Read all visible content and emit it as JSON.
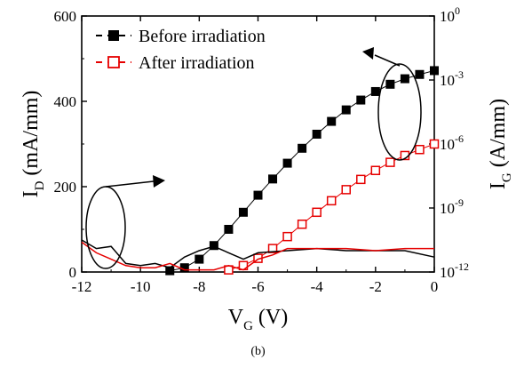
{
  "chart_data": {
    "type": "scatter",
    "caption": "(b)",
    "x_axis": {
      "label_main": "V",
      "label_sub": "G",
      "label_unit": "(V)",
      "range": [
        -12,
        0
      ],
      "ticks": [
        -12,
        -10,
        -8,
        -6,
        -4,
        -2,
        0
      ],
      "tick_labels": [
        "-12",
        "-10",
        "-8",
        "-6",
        "-4",
        "-2",
        "0"
      ]
    },
    "y_left": {
      "label_main": "I",
      "label_sub": "D",
      "label_unit": "(mA/mm)",
      "range": [
        0,
        600
      ],
      "ticks": [
        0,
        200,
        400,
        600
      ],
      "tick_labels": [
        "0",
        "200",
        "400",
        "600"
      ]
    },
    "y_right": {
      "label_main": "I",
      "label_sub": "G",
      "label_unit": "(A/mm)",
      "scale": "log",
      "range_exponent": [
        -12,
        0
      ],
      "ticks_exponent": [
        -12,
        -9,
        -6,
        -3,
        0
      ],
      "tick_labels": [
        {
          "base": "10",
          "exp": "-12"
        },
        {
          "base": "10",
          "exp": "-9"
        },
        {
          "base": "10",
          "exp": "-6"
        },
        {
          "base": "10",
          "exp": "-3"
        },
        {
          "base": "10",
          "exp": "0"
        }
      ]
    },
    "legend": {
      "position": "top-left",
      "entries": [
        {
          "label": "Before irradiation",
          "color": "#000000",
          "marker": "filled-square",
          "line": "dashed"
        },
        {
          "label": "After irradiation",
          "color": "#e60000",
          "marker": "open-square",
          "line": "dashed"
        }
      ]
    },
    "series": [
      {
        "name": "Before irradiation",
        "axis": "left",
        "color": "#000000",
        "marker": "filled-square",
        "x": [
          -9.0,
          -8.5,
          -8.0,
          -7.5,
          -7.0,
          -6.5,
          -6.0,
          -5.5,
          -5.0,
          -4.5,
          -4.0,
          -3.5,
          -3.0,
          -2.5,
          -2.0,
          -1.5,
          -1.0,
          -0.5,
          0.0
        ],
        "y": [
          3,
          10,
          30,
          62,
          100,
          140,
          180,
          218,
          255,
          290,
          323,
          353,
          380,
          403,
          423,
          440,
          453,
          463,
          472
        ]
      },
      {
        "name": "After irradiation",
        "axis": "left",
        "color": "#e60000",
        "marker": "open-square",
        "x": [
          -7.0,
          -6.5,
          -6.0,
          -5.5,
          -5.0,
          -4.5,
          -4.0,
          -3.5,
          -3.0,
          -2.5,
          -2.0,
          -1.5,
          -1.0,
          -0.5,
          0.0
        ],
        "y": [
          5,
          15,
          32,
          55,
          83,
          112,
          140,
          167,
          193,
          217,
          238,
          257,
          273,
          287,
          300
        ]
      },
      {
        "name": "Before irradiation",
        "axis": "right",
        "color": "#000000",
        "line": "solid",
        "x": [
          -12.0,
          -11.5,
          -11.0,
          -10.5,
          -10.0,
          -9.5,
          -9.0,
          -8.5,
          -8.0,
          -7.5,
          -7.0,
          -6.5,
          -6.0,
          -5.0,
          -4.0,
          -3.0,
          -2.0,
          -1.0,
          0.0
        ],
        "y_exponent": [
          -10.5,
          -10.9,
          -10.8,
          -11.6,
          -11.7,
          -11.6,
          -11.8,
          -11.3,
          -11.0,
          -10.8,
          -11.1,
          -11.4,
          -11.1,
          -11.0,
          -10.9,
          -11.0,
          -11.0,
          -11.0,
          -11.3
        ]
      },
      {
        "name": "After irradiation",
        "axis": "right",
        "color": "#e60000",
        "line": "solid",
        "x": [
          -12.0,
          -11.5,
          -11.0,
          -10.5,
          -10.0,
          -9.5,
          -9.0,
          -8.5,
          -8.0,
          -7.5,
          -7.0,
          -6.5,
          -6.0,
          -5.5,
          -5.0,
          -4.0,
          -3.0,
          -2.0,
          -1.0,
          0.0
        ],
        "y_exponent": [
          -10.6,
          -11.1,
          -11.4,
          -11.7,
          -11.8,
          -11.8,
          -11.6,
          -11.9,
          -11.9,
          -11.9,
          -11.7,
          -11.9,
          -11.4,
          -11.2,
          -10.9,
          -10.9,
          -10.9,
          -11.0,
          -10.9,
          -10.9
        ]
      }
    ],
    "annotations": [
      {
        "type": "ellipse-with-arrow",
        "target": "Before/After ID curves",
        "arrow_direction": "left"
      },
      {
        "type": "ellipse-with-arrow",
        "target": "Before/After IG curves",
        "arrow_direction": "right"
      }
    ],
    "grid": false
  }
}
